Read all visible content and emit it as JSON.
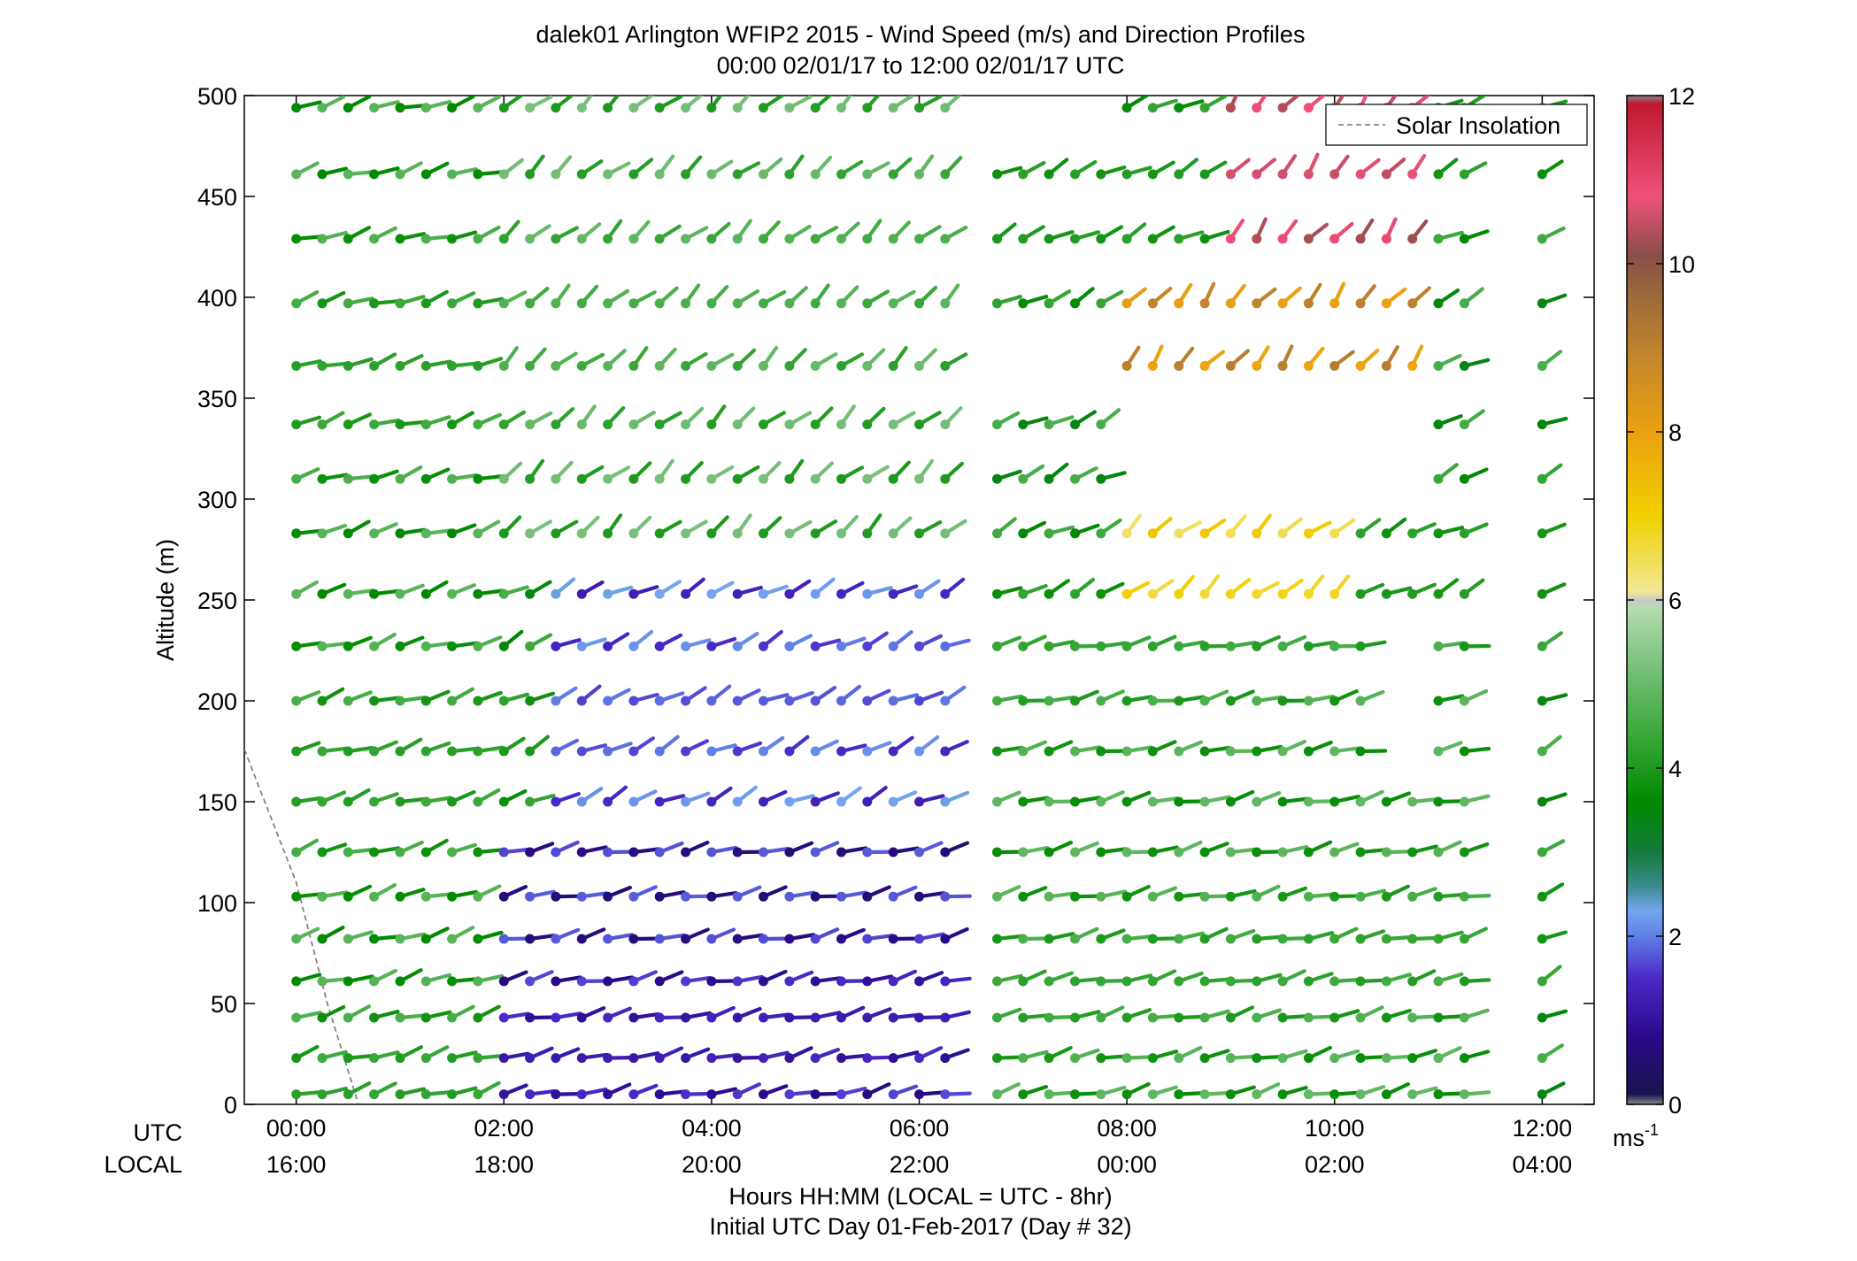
{
  "chart_data": {
    "type": "wind-barb-profile",
    "title": "dalek01 Arlington WFIP2 2015 - Wind Speed (m/s) and Direction Profiles",
    "subtitle": "00:00 02/01/17 to 12:00 02/01/17  UTC",
    "ylabel": "Altitude (m)",
    "xlabel_line1": "Hours HH:MM  (LOCAL = UTC - 8hr)",
    "xlabel_line2": "Initial UTC Day 01-Feb-2017 (Day # 32)",
    "row_label_utc": "UTC",
    "row_label_local": "LOCAL",
    "xlim_hours": [
      -0.5,
      12.5
    ],
    "ylim": [
      0,
      500
    ],
    "y_ticks": [
      0,
      50,
      100,
      150,
      200,
      250,
      300,
      350,
      400,
      450,
      500
    ],
    "x_ticks": [
      {
        "hour": 0,
        "utc": "00:00",
        "local": "16:00"
      },
      {
        "hour": 2,
        "utc": "02:00",
        "local": "18:00"
      },
      {
        "hour": 4,
        "utc": "04:00",
        "local": "20:00"
      },
      {
        "hour": 6,
        "utc": "06:00",
        "local": "22:00"
      },
      {
        "hour": 8,
        "utc": "08:00",
        "local": "00:00"
      },
      {
        "hour": 10,
        "utc": "10:00",
        "local": "02:00"
      },
      {
        "hour": 12,
        "utc": "12:00",
        "local": "04:00"
      }
    ],
    "legend": {
      "entry": "Solar Insolation",
      "style": "dashed gray line",
      "placement": "top-right"
    },
    "solar_insolation": {
      "hours": [
        -0.5,
        0.0,
        0.3,
        0.6
      ],
      "altitude_m": [
        176,
        110,
        50,
        0
      ]
    },
    "colorbar": {
      "label": "ms",
      "label_superscript": "-1",
      "min": 0,
      "max": 12,
      "ticks": [
        0,
        2,
        4,
        6,
        8,
        10,
        12
      ],
      "stops": [
        {
          "v": 0.0,
          "c": "#888888"
        },
        {
          "v": 0.12,
          "c": "#1a1450"
        },
        {
          "v": 0.8,
          "c": "#2a0a8a"
        },
        {
          "v": 1.5,
          "c": "#4a28c8"
        },
        {
          "v": 2.0,
          "c": "#5f7fe6"
        },
        {
          "v": 2.3,
          "c": "#74a6f0"
        },
        {
          "v": 2.6,
          "c": "#3a8a8e"
        },
        {
          "v": 3.0,
          "c": "#137a3c"
        },
        {
          "v": 3.6,
          "c": "#008a00"
        },
        {
          "v": 4.4,
          "c": "#3aa83a"
        },
        {
          "v": 5.2,
          "c": "#78c07a"
        },
        {
          "v": 5.9,
          "c": "#b4dcb0"
        },
        {
          "v": 6.0,
          "c": "#c8c8c8"
        },
        {
          "v": 6.1,
          "c": "#f2e896"
        },
        {
          "v": 7.0,
          "c": "#f0d000"
        },
        {
          "v": 8.0,
          "c": "#eca010"
        },
        {
          "v": 8.8,
          "c": "#c88a2a"
        },
        {
          "v": 9.6,
          "c": "#9c6a3a"
        },
        {
          "v": 10.1,
          "c": "#8a4e48"
        },
        {
          "v": 10.8,
          "c": "#f0507a"
        },
        {
          "v": 11.9,
          "c": "#c01830"
        },
        {
          "v": 12.0,
          "c": "#888888"
        }
      ]
    },
    "wind_fields": {
      "note": "speed (m/s) and direction (deg) per time column, altitude row",
      "sample_interval_hours": 0.25,
      "altitudes_m": [
        5,
        23,
        43,
        61,
        82,
        103,
        125,
        150,
        175,
        200,
        227,
        253,
        283,
        310,
        337,
        366,
        397,
        429,
        461,
        494
      ],
      "gaps": [
        {
          "from_hour": 6.5,
          "to_hour": 6.75,
          "altitudes": "all"
        },
        {
          "from_hour": 11.4,
          "to_hour": 12.0,
          "altitudes": "all"
        },
        {
          "from_hour": 6.3,
          "to_hour": 8.0,
          "altitudes": [
            366,
            494
          ]
        },
        {
          "from_hour": 8.0,
          "to_hour": 11.0,
          "altitudes": [
            337,
            310
          ]
        },
        {
          "from_hour": 10.5,
          "to_hour": 11.0,
          "altitudes": [
            175,
            200,
            227
          ]
        }
      ],
      "speed_regimes": [
        {
          "hours": [
            0,
            1.8
          ],
          "altitudes": [
            0,
            500
          ],
          "speed": 4.2,
          "dir": 250
        },
        {
          "hours": [
            1.8,
            6.5
          ],
          "altitudes": [
            0,
            130
          ],
          "speed": 1.2,
          "dir": 255
        },
        {
          "hours": [
            2.5,
            6.5
          ],
          "altitudes": [
            130,
            260
          ],
          "speed": 1.8,
          "dir": 240
        },
        {
          "hours": [
            1.8,
            6.5
          ],
          "altitudes": [
            260,
            500
          ],
          "speed": 4.6,
          "dir": 225
        },
        {
          "hours": [
            6.5,
            11.4
          ],
          "altitudes": [
            0,
            250
          ],
          "speed": 4.3,
          "dir": 255
        },
        {
          "hours": [
            8.0,
            10.2
          ],
          "altitudes": [
            250,
            330
          ],
          "speed": 6.8,
          "dir": 225
        },
        {
          "hours": [
            8.0,
            11.0
          ],
          "altitudes": [
            330,
            420
          ],
          "speed": 8.5,
          "dir": 215
        },
        {
          "hours": [
            9.0,
            11.0
          ],
          "altitudes": [
            420,
            500
          ],
          "speed": 10.6,
          "dir": 215
        }
      ]
    }
  }
}
